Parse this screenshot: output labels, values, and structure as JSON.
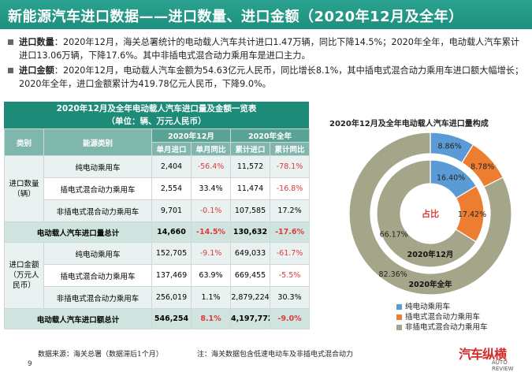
{
  "title": "新能源汽车进口数据——进口数量、进口金额（2020年12月及全年）",
  "bullets": [
    {
      "label": "进口数量",
      "text": "：2020年12月，海关总署统计的电动载人汽车共计进口1.47万辆，同比下降14.5%；2020年全年，电动载人汽车累计进口13.06万辆，下降17.6%。其中非插电式混合动力乘用车是进口主力。"
    },
    {
      "label": "进口金额",
      "text": "：2020年12月，电动载人汽车金额为54.63亿元人民币，同比增长8.1%，其中插电式混合动力乘用车进口额大幅增长；2020年全年，进口金额累计为419.78亿元人民币，下降9.0%。"
    }
  ],
  "table": {
    "title_line1": "2020年12月及全年电动载人汽车进口量及金额一览表",
    "title_line2": "（单位：辆、万元人民币）",
    "h_category": "类别",
    "h_energy": "能源类别",
    "h_dec": "2020年12月",
    "h_year": "2020年全年",
    "h_c1": "单月进口",
    "h_c2": "单月同比",
    "h_c3": "累计进口",
    "h_c4": "累计同比",
    "qty_label": "进口数量（辆）",
    "amt_label": "进口金额（万元人民币）",
    "qty_rows": [
      {
        "name": "纯电动乘用车",
        "c1": "2,404",
        "c2": "-56.4%",
        "c3": "11,572",
        "c4": "-78.1%"
      },
      {
        "name": "插电式混合动力乘用车",
        "c1": "2,554",
        "c2": "33.4%",
        "c3": "11,474",
        "c4": "-16.8%"
      },
      {
        "name": "非插电式混合动力乘用车",
        "c1": "9,701",
        "c2": "-0.1%",
        "c3": "107,585",
        "c4": "17.2%"
      }
    ],
    "qty_total": {
      "name": "电动载人汽车进口量总计",
      "c1": "14,660",
      "c2": "-14.5%",
      "c3": "130,632",
      "c4": "-17.6%"
    },
    "amt_rows": [
      {
        "name": "纯电动乘用车",
        "c1": "152,705",
        "c2": "-9.1%",
        "c3": "649,033",
        "c4": "-61.7%"
      },
      {
        "name": "插电式混合动力乘用车",
        "c1": "137,469",
        "c2": "63.9%",
        "c3": "669,455",
        "c4": "-5.5%"
      },
      {
        "name": "非插电式混合动力乘用车",
        "c1": "256,019",
        "c2": "1.1%",
        "c3": "2,879,224",
        "c4": "30.3%"
      }
    ],
    "amt_total": {
      "name": "电动载人汽车进口额总计",
      "c1": "546,254",
      "c2": "8.1%",
      "c3": "4,197,772",
      "c4": "-9.0%"
    }
  },
  "footer_source": "数据来源：海关总署（数据滞后1个月）",
  "footer_note": "注：海关数据包含低速电动车及非插电式混合动力",
  "page_number": "9",
  "logo_text": "汽车纵横",
  "logo_sub": "AUTO REVIEW",
  "chart_data": {
    "type": "pie",
    "title": "2020年12月及全年电动载人汽车进口量构成",
    "center_label": "占比",
    "categories": [
      "纯电动乘用车",
      "插电式混合动力乘用车",
      "非插电式混合动力乘用车"
    ],
    "colors": [
      "#5b9bd5",
      "#ed7d31",
      "#a5a58a"
    ],
    "series": [
      {
        "name": "2020年12月",
        "values": [
          16.4,
          17.42,
          66.17
        ],
        "labels": [
          "16.40%",
          "17.42%",
          "66.17%"
        ]
      },
      {
        "name": "2020年全年",
        "values": [
          8.86,
          8.78,
          82.36
        ],
        "labels": [
          "8.86%",
          "8.78%",
          "82.36%"
        ]
      }
    ]
  }
}
